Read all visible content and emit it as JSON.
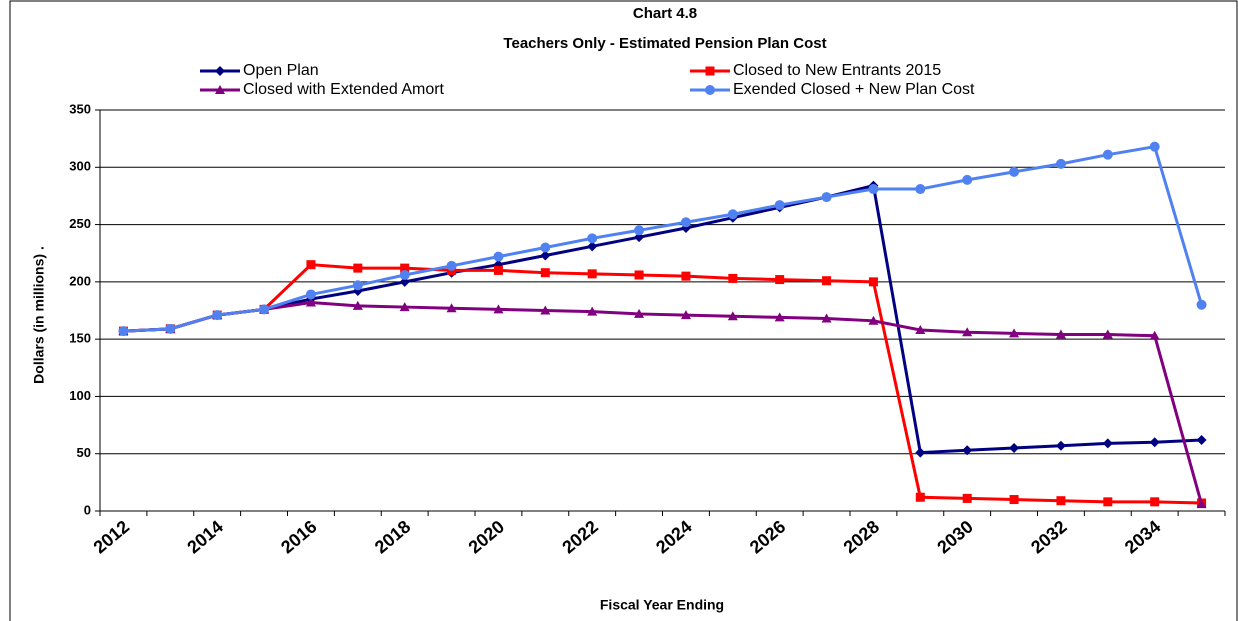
{
  "chart_data": {
    "type": "line",
    "title": "Chart 4.8",
    "subtitle": "Teachers Only - Estimated Pension Plan Cost",
    "y_label": "Dollars (in millions)   .",
    "x_label": "Fiscal Year Ending",
    "categories": [
      "2012",
      null,
      "2014",
      null,
      "2016",
      null,
      "2018",
      null,
      "2020",
      null,
      "2022",
      null,
      "2024",
      null,
      "2026",
      null,
      "2028",
      null,
      "2030",
      null,
      "2032",
      null,
      "2034",
      null
    ],
    "series": [
      {
        "name": "Open Plan",
        "color": "#000080",
        "marker": "diamond",
        "values": [
          157,
          159,
          171,
          176,
          185,
          192,
          200,
          208,
          215,
          223,
          231,
          239,
          247,
          256,
          265,
          274,
          284,
          51,
          53,
          55,
          57,
          59,
          60,
          62
        ]
      },
      {
        "name": "Closed to New Entrants 2015",
        "color": "#ff0000",
        "marker": "square",
        "values": [
          157,
          159,
          171,
          176,
          215,
          212,
          212,
          210,
          210,
          208,
          207,
          206,
          205,
          203,
          202,
          201,
          200,
          12,
          11,
          10,
          9,
          8,
          8,
          7
        ]
      },
      {
        "name": "Closed with Extended Amort",
        "color": "#800080",
        "marker": "triangle",
        "values": [
          157,
          159,
          171,
          176,
          182,
          179,
          178,
          177,
          176,
          175,
          174,
          172,
          171,
          170,
          169,
          168,
          166,
          158,
          156,
          155,
          154,
          154,
          153,
          6
        ]
      },
      {
        "name": "Exended Closed + New Plan Cost",
        "color": "#4f81f0",
        "marker": "circle",
        "values": [
          157,
          159,
          171,
          176,
          189,
          197,
          206,
          214,
          222,
          230,
          238,
          245,
          252,
          259,
          267,
          274,
          281,
          281,
          289,
          296,
          303,
          311,
          318,
          180
        ]
      }
    ],
    "ylim": [
      0,
      350
    ],
    "yticks": [
      0,
      50,
      100,
      150,
      200,
      250,
      300,
      350
    ],
    "grid": true
  }
}
